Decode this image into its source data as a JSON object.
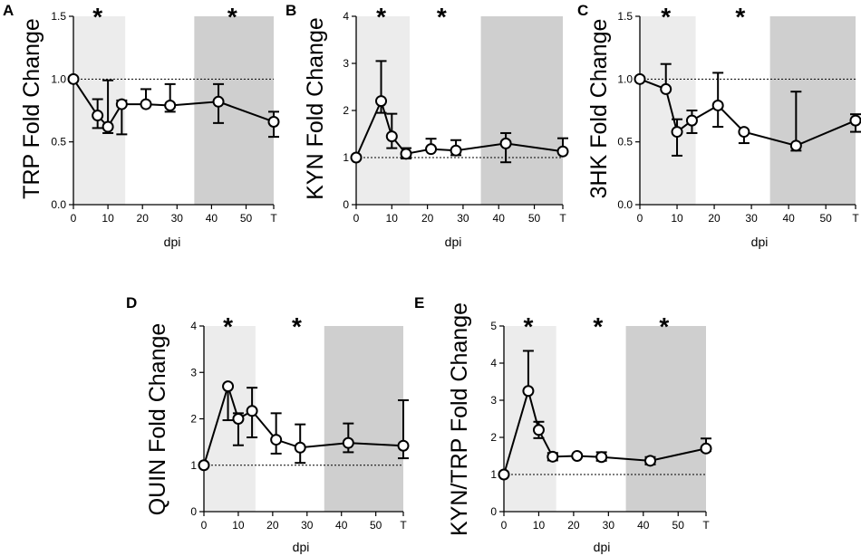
{
  "figure": {
    "background": "#ffffff",
    "light_shade": "#ececec",
    "dark_shade": "#cfcfcf",
    "line_color": "#000000"
  },
  "chart_data": [
    {
      "panel": "A",
      "type": "line",
      "ylabel": "TRP Fold Change",
      "xlabel": "dpi",
      "ylim": [
        0,
        1.5
      ],
      "yticks": [
        "0.0",
        "0.5",
        "1.0",
        "1.5"
      ],
      "xticks": [
        "0",
        "10",
        "20",
        "30",
        "40",
        "50",
        "T"
      ],
      "xtick_values": [
        0,
        10,
        20,
        30,
        40,
        50,
        58
      ],
      "xlim": [
        0,
        58
      ],
      "shaded": [
        {
          "from": 0,
          "to": 15,
          "tone": "light"
        },
        {
          "from": 35,
          "to": 58,
          "tone": "dark"
        }
      ],
      "reference_line": 1.0,
      "significance": [
        {
          "x": 7,
          "label": "*"
        },
        {
          "x": 46,
          "label": "*"
        }
      ],
      "series": [
        {
          "name": "TRP",
          "x": [
            0,
            7,
            10,
            14,
            21,
            28,
            42,
            58
          ],
          "y": [
            1.0,
            0.71,
            0.62,
            0.8,
            0.8,
            0.79,
            0.82,
            0.66
          ],
          "err_high": [
            0,
            0.13,
            0.37,
            0.03,
            0.12,
            0.17,
            0.14,
            0.08
          ],
          "err_low": [
            0,
            0.1,
            0.05,
            0.24,
            0.0,
            0.05,
            0.17,
            0.12
          ]
        }
      ]
    },
    {
      "panel": "B",
      "type": "line",
      "ylabel": "KYN Fold Change",
      "xlabel": "dpi",
      "ylim": [
        0,
        4
      ],
      "yticks": [
        "0",
        "1",
        "2",
        "3",
        "4"
      ],
      "xticks": [
        "0",
        "10",
        "20",
        "30",
        "40",
        "50",
        "T"
      ],
      "xtick_values": [
        0,
        10,
        20,
        30,
        40,
        50,
        58
      ],
      "xlim": [
        0,
        58
      ],
      "shaded": [
        {
          "from": 0,
          "to": 15,
          "tone": "light"
        },
        {
          "from": 35,
          "to": 58,
          "tone": "dark"
        }
      ],
      "reference_line": 1.0,
      "significance": [
        {
          "x": 7,
          "label": "*"
        },
        {
          "x": 24,
          "label": "*"
        }
      ],
      "series": [
        {
          "name": "KYN",
          "x": [
            0,
            7,
            10,
            14,
            21,
            28,
            42,
            58
          ],
          "y": [
            1.0,
            2.2,
            1.45,
            1.08,
            1.18,
            1.15,
            1.3,
            1.13
          ],
          "err_high": [
            0,
            0.85,
            0.48,
            0.12,
            0.22,
            0.22,
            0.22,
            0.28
          ],
          "err_low": [
            0,
            0.25,
            0.25,
            0.1,
            0.0,
            0.1,
            0.4,
            0.0
          ]
        }
      ]
    },
    {
      "panel": "C",
      "type": "line",
      "ylabel": "3HK Fold Change",
      "xlabel": "dpi",
      "ylim": [
        0,
        1.5
      ],
      "yticks": [
        "0.0",
        "0.5",
        "1.0",
        "1.5"
      ],
      "xticks": [
        "0",
        "10",
        "20",
        "30",
        "40",
        "50",
        "T"
      ],
      "xtick_values": [
        0,
        10,
        20,
        30,
        40,
        50,
        58
      ],
      "xlim": [
        0,
        58
      ],
      "shaded": [
        {
          "from": 0,
          "to": 15,
          "tone": "light"
        },
        {
          "from": 35,
          "to": 58,
          "tone": "dark"
        }
      ],
      "reference_line": 1.0,
      "significance": [
        {
          "x": 7,
          "label": "*"
        },
        {
          "x": 27,
          "label": "*"
        }
      ],
      "series": [
        {
          "name": "3HK",
          "x": [
            0,
            7,
            10,
            14,
            21,
            28,
            42,
            58
          ],
          "y": [
            1.0,
            0.92,
            0.58,
            0.67,
            0.79,
            0.58,
            0.47,
            0.67
          ],
          "err_high": [
            0,
            0.2,
            0.1,
            0.08,
            0.26,
            0.0,
            0.43,
            0.05
          ],
          "err_low": [
            0,
            0.0,
            0.19,
            0.1,
            0.17,
            0.09,
            0.04,
            0.09
          ]
        }
      ]
    },
    {
      "panel": "D",
      "type": "line",
      "ylabel": "QUIN Fold Change",
      "xlabel": "dpi",
      "ylim": [
        0,
        4
      ],
      "yticks": [
        "0",
        "1",
        "2",
        "3",
        "4"
      ],
      "xticks": [
        "0",
        "10",
        "20",
        "30",
        "40",
        "50",
        "T"
      ],
      "xtick_values": [
        0,
        10,
        20,
        30,
        40,
        50,
        58
      ],
      "xlim": [
        0,
        58
      ],
      "shaded": [
        {
          "from": 0,
          "to": 15,
          "tone": "light"
        },
        {
          "from": 35,
          "to": 58,
          "tone": "dark"
        }
      ],
      "reference_line": 1.0,
      "significance": [
        {
          "x": 7,
          "label": "*"
        },
        {
          "x": 27,
          "label": "*"
        }
      ],
      "series": [
        {
          "name": "QUIN",
          "x": [
            0,
            7,
            10,
            14,
            21,
            28,
            42,
            58
          ],
          "y": [
            1.0,
            2.7,
            2.0,
            2.17,
            1.55,
            1.38,
            1.48,
            1.42
          ],
          "err_high": [
            0,
            0.0,
            0.12,
            0.5,
            0.57,
            0.5,
            0.42,
            0.98
          ],
          "err_low": [
            0,
            0.73,
            0.57,
            0.57,
            0.3,
            0.33,
            0.2,
            0.27
          ]
        }
      ]
    },
    {
      "panel": "E",
      "type": "line",
      "ylabel": "KYN/TRP Fold Change",
      "xlabel": "dpi",
      "ylim": [
        0,
        5
      ],
      "yticks": [
        "0",
        "1",
        "2",
        "3",
        "4",
        "5"
      ],
      "xticks": [
        "0",
        "10",
        "20",
        "30",
        "40",
        "50",
        "T"
      ],
      "xtick_values": [
        0,
        10,
        20,
        30,
        40,
        50,
        58
      ],
      "xlim": [
        0,
        58
      ],
      "shaded": [
        {
          "from": 0,
          "to": 15,
          "tone": "light"
        },
        {
          "from": 35,
          "to": 58,
          "tone": "dark"
        }
      ],
      "reference_line": 1.0,
      "significance": [
        {
          "x": 7,
          "label": "*"
        },
        {
          "x": 27,
          "label": "*"
        },
        {
          "x": 46,
          "label": "*"
        }
      ],
      "series": [
        {
          "name": "KYN/TRP",
          "x": [
            0,
            7,
            10,
            14,
            21,
            28,
            42,
            58
          ],
          "y": [
            1.0,
            3.25,
            2.2,
            1.48,
            1.5,
            1.47,
            1.37,
            1.7
          ],
          "err_high": [
            0,
            1.08,
            0.22,
            0.1,
            0.03,
            0.13,
            0.1,
            0.27
          ],
          "err_low": [
            0,
            0.0,
            0.22,
            0.1,
            0.03,
            0.1,
            0.1,
            0.07
          ]
        }
      ]
    }
  ]
}
